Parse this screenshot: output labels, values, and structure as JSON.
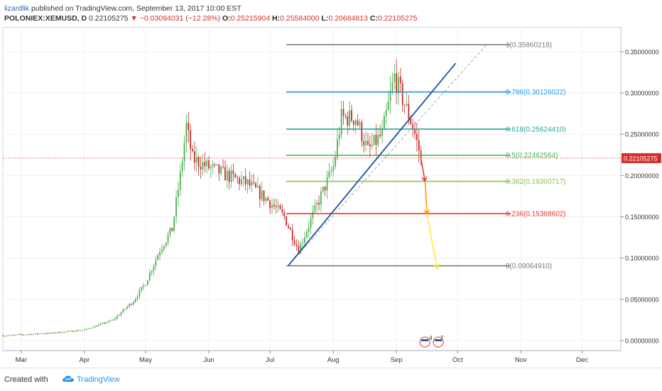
{
  "header": {
    "author": "lizardlik",
    "published": "published on TradingView.com, September 13, 2017 10:00 EST",
    "symbol": "POLONIEX:XEMUSD, D",
    "price": "0.22105275",
    "change": "▼ −0.03094031 (−12.28%)",
    "open_label": "O:",
    "open": "0.25215904",
    "high_label": "H:",
    "high": "0.25584000",
    "low_label": "L:",
    "low": "0.20684813",
    "close_label": "C:",
    "close": "0.22105275"
  },
  "footer": {
    "created": "Created with",
    "brand": "TradingView"
  },
  "colors": {
    "up": "#4caf50",
    "down": "#c62828",
    "grid": "#eef0f3",
    "trend": "#1e4fa3",
    "last_price": "#d32f2f"
  },
  "chart_data": {
    "type": "candlestick",
    "title": "",
    "xlabel": "",
    "ylabel": "",
    "ylim": [
      -0.012,
      0.38
    ],
    "y_ticks": [
      "0.35000000",
      "0.30000000",
      "0.25000000",
      "0.20000000",
      "0.15000000",
      "0.10000000",
      "0.05000000",
      "0.00000000"
    ],
    "y_tick_values": [
      0.35,
      0.3,
      0.25,
      0.2,
      0.15,
      0.1,
      0.05,
      0.0
    ],
    "x_range": [
      "2017-02-20",
      "2017-12-20"
    ],
    "x_ticks": [
      {
        "label": "Mar",
        "date": "2017-03-01"
      },
      {
        "label": "Apr",
        "date": "2017-04-01"
      },
      {
        "label": "May",
        "date": "2017-05-01"
      },
      {
        "label": "Jun",
        "date": "2017-06-01"
      },
      {
        "label": "Jul",
        "date": "2017-07-01"
      },
      {
        "label": "Aug",
        "date": "2017-08-01"
      },
      {
        "label": "Sep",
        "date": "2017-09-01"
      },
      {
        "label": "Oct",
        "date": "2017-10-01"
      },
      {
        "label": "Nov",
        "date": "2017-11-01"
      },
      {
        "label": "Dec",
        "date": "2017-12-01"
      }
    ],
    "price_path": [
      [
        "2017-02-20",
        0.006
      ],
      [
        "2017-03-15",
        0.009
      ],
      [
        "2017-04-01",
        0.013
      ],
      [
        "2017-04-15",
        0.025
      ],
      [
        "2017-04-25",
        0.048
      ],
      [
        "2017-05-01",
        0.07
      ],
      [
        "2017-05-08",
        0.11
      ],
      [
        "2017-05-14",
        0.135
      ],
      [
        "2017-05-18",
        0.2
      ],
      [
        "2017-05-21",
        0.26
      ],
      [
        "2017-05-24",
        0.22
      ],
      [
        "2017-06-01",
        0.21
      ],
      [
        "2017-06-10",
        0.2
      ],
      [
        "2017-06-20",
        0.19
      ],
      [
        "2017-06-30",
        0.17
      ],
      [
        "2017-07-08",
        0.15
      ],
      [
        "2017-07-15",
        0.11
      ],
      [
        "2017-07-20",
        0.14
      ],
      [
        "2017-07-25",
        0.17
      ],
      [
        "2017-08-01",
        0.21
      ],
      [
        "2017-08-05",
        0.27
      ],
      [
        "2017-08-12",
        0.27
      ],
      [
        "2017-08-18",
        0.23
      ],
      [
        "2017-08-25",
        0.25
      ],
      [
        "2017-08-31",
        0.32
      ],
      [
        "2017-09-03",
        0.3
      ],
      [
        "2017-09-06",
        0.28
      ],
      [
        "2017-09-09",
        0.26
      ],
      [
        "2017-09-13",
        0.221
      ]
    ],
    "last_price": {
      "value": 0.22105275,
      "label": "0.22105275"
    },
    "fibonacci": {
      "start": "2017-07-09",
      "end": "2017-10-27",
      "levels": [
        {
          "label": "1(0.35860218)",
          "value": 0.35860218,
          "color": "#787b86"
        },
        {
          "label": "0.786(0.30126022)",
          "value": 0.30126022,
          "color": "#2196f3"
        },
        {
          "label": "0.618(0.25624410)",
          "value": 0.2562441,
          "color": "#26a69a"
        },
        {
          "label": "0.5(0.22462564)",
          "value": 0.22462564,
          "color": "#4caf50"
        },
        {
          "label": "0.382(0.19300717)",
          "value": 0.19300717,
          "color": "#8bc34a"
        },
        {
          "label": "0.236(0.15388602)",
          "value": 0.15388602,
          "color": "#e53935"
        },
        {
          "label": "0(0.09064910)",
          "value": 0.0906491,
          "color": "#787b86"
        }
      ]
    },
    "trendline": {
      "from": [
        "2017-07-10",
        0.091
      ],
      "to": [
        "2017-09-30",
        0.336
      ]
    },
    "dashed_line": {
      "from": [
        "2017-07-10",
        0.091
      ],
      "to": [
        "2017-10-15",
        0.358
      ]
    },
    "arrows": [
      {
        "from": [
          "2017-09-13",
          0.221
        ],
        "to": [
          "2017-09-15",
          0.193
        ],
        "color": "#e53935"
      },
      {
        "from": [
          "2017-09-15",
          0.193
        ],
        "to": [
          "2017-09-16",
          0.153
        ],
        "color": "#ff9800"
      },
      {
        "from": [
          "2017-09-16",
          0.153
        ],
        "to": [
          "2017-09-21",
          0.087
        ],
        "color": "#ffeb3b"
      }
    ],
    "events": {
      "date": "2017-09-17",
      "labels": [
        "4",
        "7"
      ]
    }
  }
}
